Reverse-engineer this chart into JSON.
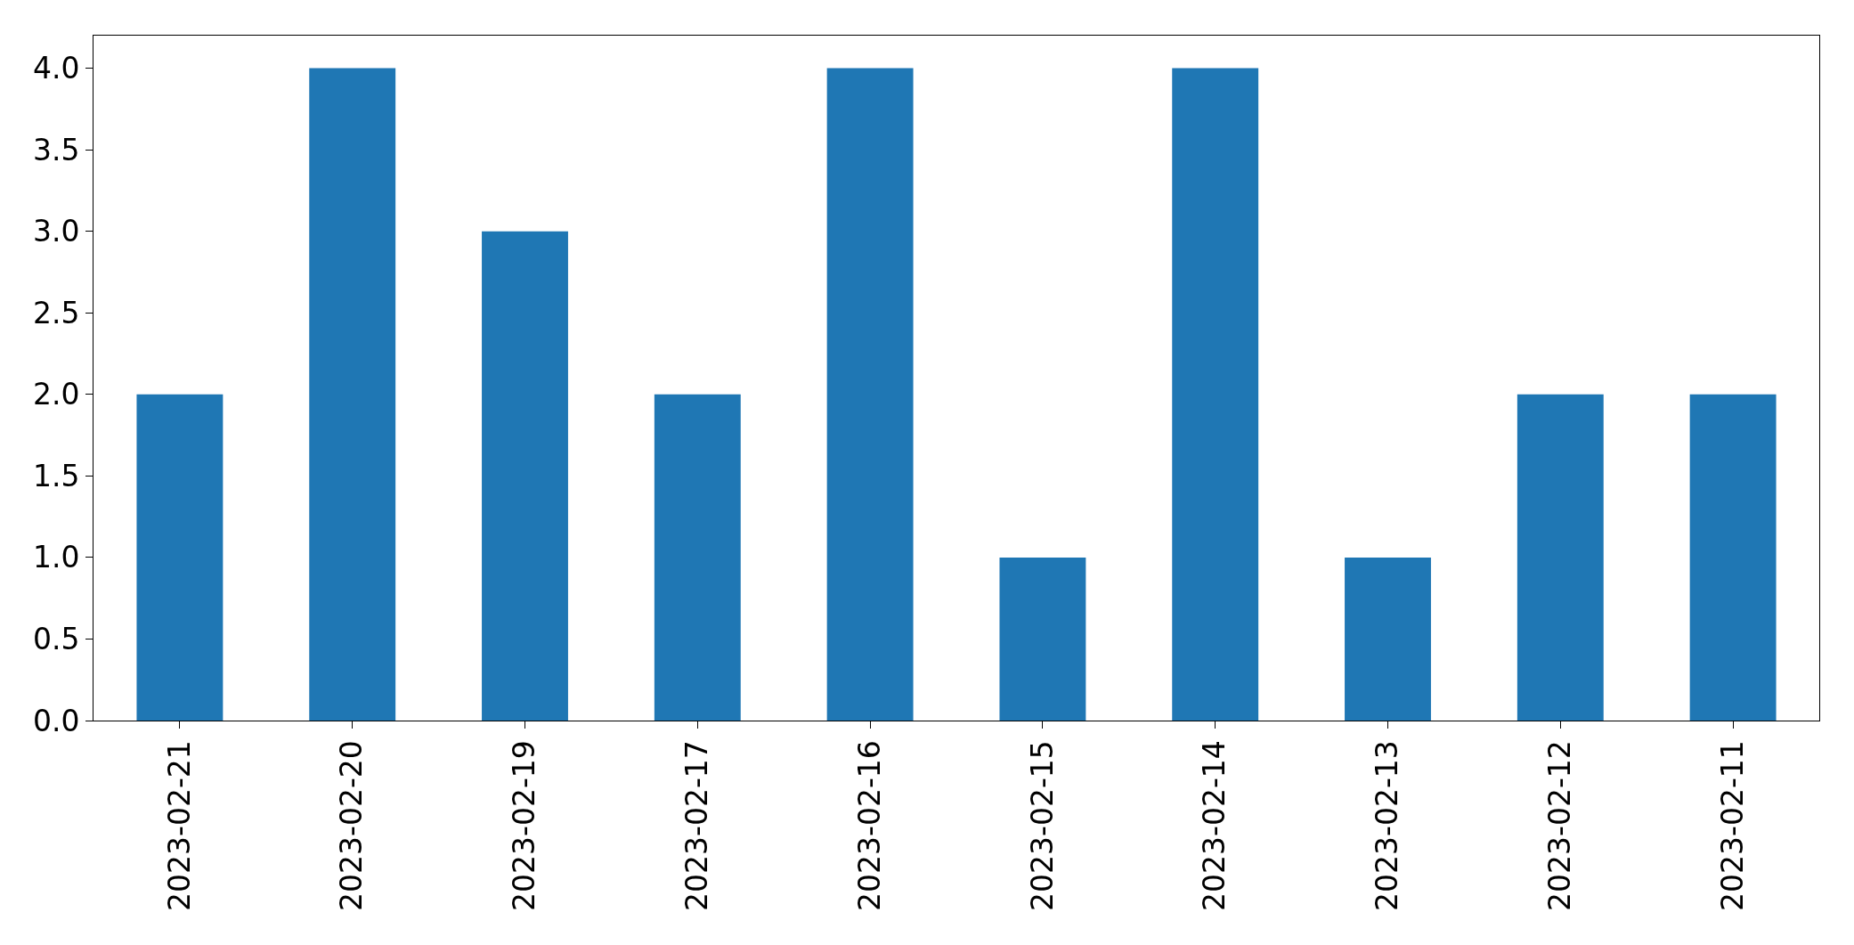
{
  "chart_data": {
    "type": "bar",
    "categories": [
      "2023-02-21",
      "2023-02-20",
      "2023-02-19",
      "2023-02-17",
      "2023-02-16",
      "2023-02-15",
      "2023-02-14",
      "2023-02-13",
      "2023-02-12",
      "2023-02-11"
    ],
    "values": [
      2,
      4,
      3,
      2,
      4,
      1,
      4,
      1,
      2,
      2
    ],
    "color": "#1f77b4",
    "ylim": [
      0,
      4.2
    ],
    "yticks": [
      {
        "value": 0,
        "label": "0.0"
      },
      {
        "value": 0.5,
        "label": "0.5"
      },
      {
        "value": 1,
        "label": "1.0"
      },
      {
        "value": 1.5,
        "label": "1.5"
      },
      {
        "value": 2,
        "label": "2.0"
      },
      {
        "value": 2.5,
        "label": "2.5"
      },
      {
        "value": 3,
        "label": "3.0"
      },
      {
        "value": 3.5,
        "label": "3.5"
      },
      {
        "value": 4,
        "label": "4.0"
      }
    ]
  }
}
